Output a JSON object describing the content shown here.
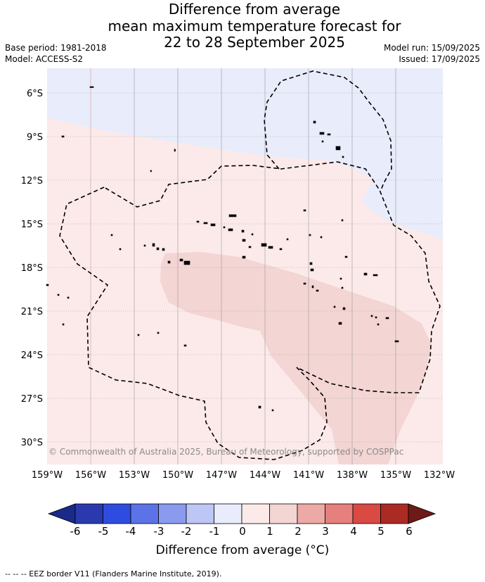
{
  "title": {
    "line1": "Difference from average",
    "line2": "mean maximum temperature forecast for",
    "line3": "22 to 28 September 2025"
  },
  "info": {
    "base_period": "Base period: 1981-2018",
    "model": "Model: ACCESS-S2",
    "model_run": "Model run: 15/09/2025",
    "issued": "Issued: 17/09/2025"
  },
  "map": {
    "latitude_labels": [
      "6°S",
      "9°S",
      "12°S",
      "15°S",
      "18°S",
      "21°S",
      "24°S",
      "27°S",
      "30°S"
    ],
    "longitude_labels": [
      "159°W",
      "156°W",
      "153°W",
      "150°W",
      "147°W",
      "144°W",
      "141°W",
      "138°W",
      "135°W",
      "132°W"
    ],
    "copyright": "© Commonwealth of Australia 2025, Bureau of Meteorology, supported by COSPPac",
    "colors": {
      "neg_0_1": "#e8ecfb",
      "pos_0_1": "#fbeae9",
      "pos_1_2": "#f3d5d3"
    }
  },
  "colorbar": {
    "ticks": [
      "-6",
      "-5",
      "-4",
      "-3",
      "-2",
      "-1",
      "0",
      "1",
      "2",
      "3",
      "4",
      "5",
      "6"
    ],
    "colors": [
      "#1a2a8a",
      "#2a3aae",
      "#2f4ce0",
      "#5b73e6",
      "#8a9aee",
      "#bec6f6",
      "#e8ecfb",
      "#fbeae9",
      "#f3d5d3",
      "#ecaaa6",
      "#e5807c",
      "#d94a42",
      "#ab2a24",
      "#6e1a16"
    ],
    "label": "Difference from average (°C)"
  },
  "footer": {
    "eez_legend": "--  --  -- EEZ border V11 (Flanders Marine Institute, 2019)."
  }
}
